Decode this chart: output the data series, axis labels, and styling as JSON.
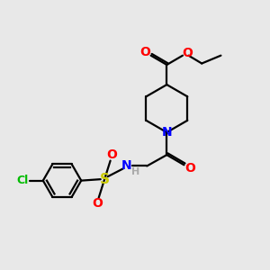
{
  "background_color": "#e8e8e8",
  "bond_color": "#000000",
  "atom_colors": {
    "O": "#ff0000",
    "N": "#0000ff",
    "S": "#cccc00",
    "Cl": "#00bb00",
    "H": "#aaaaaa"
  },
  "figsize": [
    3.0,
    3.0
  ],
  "dpi": 100
}
